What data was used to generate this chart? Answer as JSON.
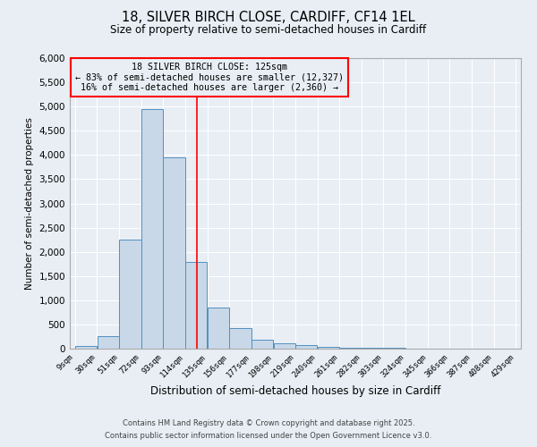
{
  "title1": "18, SILVER BIRCH CLOSE, CARDIFF, CF14 1EL",
  "title2": "Size of property relative to semi-detached houses in Cardiff",
  "xlabel": "Distribution of semi-detached houses by size in Cardiff",
  "ylabel": "Number of semi-detached properties",
  "bin_labels": [
    "9sqm",
    "30sqm",
    "51sqm",
    "72sqm",
    "93sqm",
    "114sqm",
    "135sqm",
    "156sqm",
    "177sqm",
    "198sqm",
    "219sqm",
    "240sqm",
    "261sqm",
    "282sqm",
    "303sqm",
    "324sqm",
    "345sqm",
    "366sqm",
    "387sqm",
    "408sqm",
    "429sqm"
  ],
  "bin_values": [
    50,
    260,
    2250,
    4950,
    3950,
    1800,
    850,
    420,
    190,
    110,
    65,
    45,
    25,
    15,
    10,
    5,
    5,
    5,
    3,
    3
  ],
  "bar_color": "#c8d8e8",
  "bar_edge_color": "#5090c0",
  "bin_edges": [
    9,
    30,
    51,
    72,
    93,
    114,
    135,
    156,
    177,
    198,
    219,
    240,
    261,
    282,
    303,
    324,
    345,
    366,
    387,
    408,
    429
  ],
  "vline_x": 125,
  "vline_color": "red",
  "annotation_text": "18 SILVER BIRCH CLOSE: 125sqm\n← 83% of semi-detached houses are smaller (12,327)\n16% of semi-detached houses are larger (2,360) →",
  "annotation_box_color": "red",
  "ylim": [
    0,
    6000
  ],
  "yticks": [
    0,
    500,
    1000,
    1500,
    2000,
    2500,
    3000,
    3500,
    4000,
    4500,
    5000,
    5500,
    6000
  ],
  "footer1": "Contains HM Land Registry data © Crown copyright and database right 2025.",
  "footer2": "Contains public sector information licensed under the Open Government Licence v3.0.",
  "bg_color": "#e8eef4",
  "grid_color": "white"
}
